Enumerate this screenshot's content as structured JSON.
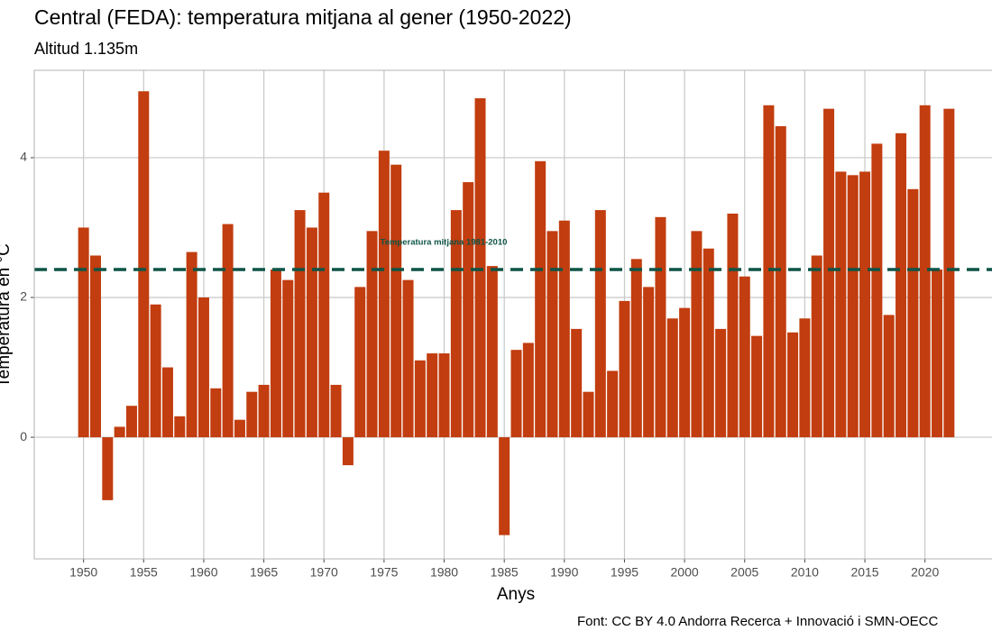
{
  "chart_data": {
    "type": "bar",
    "title": "Central (FEDA): temperatura mitjana al gener (1950-2022)",
    "subtitle": "Altitud 1.135m",
    "x_label": "Anys",
    "y_label": "Temperatura en °C",
    "caption": "Font: CC BY 4.0 Andorra Recerca + Innovació i SMN-OECC",
    "color": "#c23d0f",
    "x": [
      1950,
      1951,
      1952,
      1953,
      1954,
      1955,
      1956,
      1957,
      1958,
      1959,
      1960,
      1961,
      1962,
      1963,
      1964,
      1965,
      1966,
      1967,
      1968,
      1969,
      1970,
      1971,
      1972,
      1973,
      1974,
      1975,
      1976,
      1977,
      1978,
      1979,
      1980,
      1981,
      1982,
      1983,
      1984,
      1985,
      1986,
      1987,
      1988,
      1989,
      1990,
      1991,
      1992,
      1993,
      1994,
      1995,
      1996,
      1997,
      1998,
      1999,
      2000,
      2001,
      2002,
      2003,
      2004,
      2005,
      2006,
      2007,
      2008,
      2009,
      2010,
      2011,
      2012,
      2013,
      2014,
      2015,
      2016,
      2017,
      2018,
      2019,
      2020,
      2021,
      2022
    ],
    "values": [
      3.0,
      2.6,
      -0.9,
      0.15,
      0.45,
      4.95,
      1.9,
      1.0,
      0.3,
      2.65,
      2.0,
      0.7,
      3.05,
      0.25,
      0.65,
      0.75,
      2.4,
      2.25,
      3.25,
      3.0,
      3.5,
      0.75,
      -0.4,
      2.15,
      2.95,
      4.1,
      3.9,
      2.25,
      1.1,
      1.2,
      1.2,
      3.25,
      3.65,
      4.85,
      2.45,
      -1.4,
      1.25,
      1.35,
      3.95,
      2.95,
      3.1,
      1.55,
      0.65,
      3.25,
      0.95,
      1.95,
      2.55,
      2.15,
      3.15,
      1.7,
      1.85,
      2.95,
      2.7,
      1.55,
      3.2,
      2.3,
      1.45,
      4.75,
      4.45,
      1.5,
      1.7,
      2.6,
      4.7,
      3.8,
      3.75,
      3.8,
      4.2,
      1.75,
      4.35,
      3.55,
      4.75,
      2.4,
      4.7
    ],
    "reference_line": {
      "value": 2.4,
      "label": "Temperatura mitjana 1981-2010",
      "color": "#0d5446"
    },
    "xlim": [
      1945.9,
      2026.1
    ],
    "xticks": [
      1950,
      1955,
      1960,
      1965,
      1970,
      1975,
      1980,
      1985,
      1990,
      1995,
      2000,
      2005,
      2010,
      2015,
      2020
    ],
    "ylim": [
      -1.74,
      5.25
    ],
    "yticks": [
      0,
      2,
      4
    ],
    "grid": true
  }
}
